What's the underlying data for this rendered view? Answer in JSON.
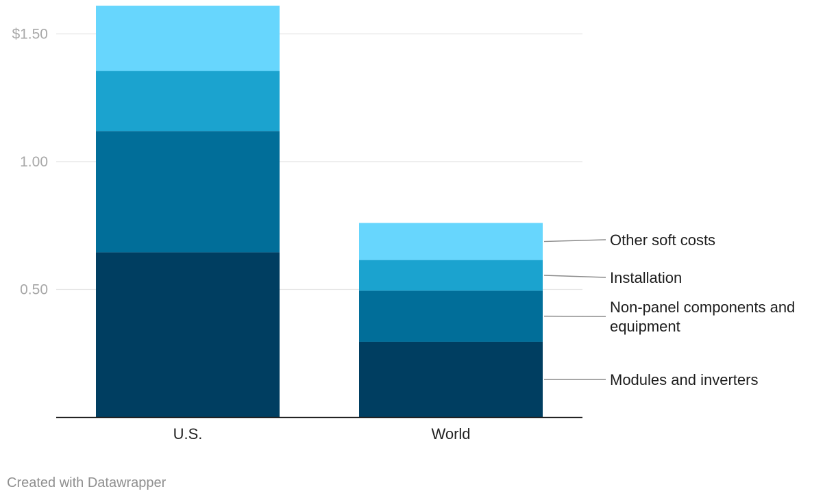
{
  "chart_data": {
    "type": "bar",
    "stacked": true,
    "title": "",
    "xlabel": "",
    "ylabel": "",
    "ylim": [
      0,
      1.6
    ],
    "y_ticks": [
      {
        "value": 0.5,
        "label": "0.50"
      },
      {
        "value": 1.0,
        "label": "1.00"
      },
      {
        "value": 1.5,
        "label": "$1.50"
      }
    ],
    "categories": [
      "U.S.",
      "World"
    ],
    "series": [
      {
        "name": "Modules and inverters",
        "label": "Modules and inverters",
        "color": "#003e61",
        "values": [
          0.645,
          0.295
        ]
      },
      {
        "name": "Non-panel components and equipment",
        "label": "Non-panel components and equipment",
        "color": "#016e99",
        "values": [
          0.475,
          0.2
        ]
      },
      {
        "name": "Installation",
        "label": "Installation",
        "color": "#1ba3cf",
        "values": [
          0.235,
          0.12
        ]
      },
      {
        "name": "Other soft costs",
        "label": "Other soft costs",
        "color": "#67d6fd",
        "values": [
          0.255,
          0.145
        ]
      }
    ],
    "legend_position": "right",
    "grid": true
  },
  "footer": {
    "credit": "Created with Datawrapper"
  }
}
